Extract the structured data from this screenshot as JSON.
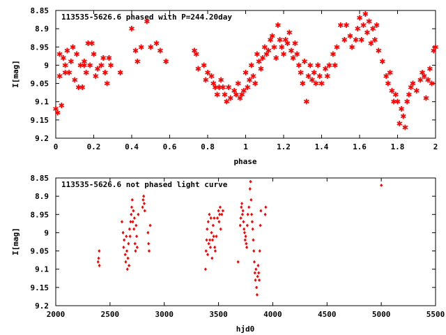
{
  "chart_data": [
    {
      "type": "scatter",
      "title": "113535-5626.6 phased with P=244.20day",
      "xlabel": "phase",
      "ylabel": "I[mag]",
      "xlim": [
        0,
        2
      ],
      "ylim": [
        9.2,
        8.85
      ],
      "y_inverted": true,
      "x_ticks": [
        "0",
        "0.2",
        "0.4",
        "0.6",
        "0.8",
        "1",
        "1.2",
        "1.4",
        "1.6",
        "1.8",
        "2"
      ],
      "y_ticks": [
        "8.85",
        "8.9",
        "8.95",
        "9",
        "9.05",
        "9.1",
        "9.15",
        "9.2"
      ],
      "grid": false,
      "marker_color": "#ff0000",
      "series": [
        {
          "points": [
            [
              0.0,
              9.12
            ],
            [
              0.01,
              9.13
            ],
            [
              0.02,
              9.03
            ],
            [
              0.02,
              8.97
            ],
            [
              0.03,
              9.11
            ],
            [
              0.04,
              8.98
            ],
            [
              0.05,
              9.0
            ],
            [
              0.05,
              9.02
            ],
            [
              0.06,
              8.96
            ],
            [
              0.07,
              9.02
            ],
            [
              0.08,
              8.99
            ],
            [
              0.09,
              8.95
            ],
            [
              0.1,
              9.04
            ],
            [
              0.11,
              8.97
            ],
            [
              0.12,
              9.06
            ],
            [
              0.13,
              9.0
            ],
            [
              0.14,
              9.06
            ],
            [
              0.15,
              9.0
            ],
            [
              0.15,
              8.99
            ],
            [
              0.16,
              9.02
            ],
            [
              0.17,
              8.94
            ],
            [
              0.18,
              9.0
            ],
            [
              0.19,
              8.94
            ],
            [
              0.2,
              8.97
            ],
            [
              0.21,
              9.03
            ],
            [
              0.22,
              9.01
            ],
            [
              0.24,
              9.0
            ],
            [
              0.25,
              8.98
            ],
            [
              0.26,
              9.02
            ],
            [
              0.27,
              9.05
            ],
            [
              0.28,
              8.98
            ],
            [
              0.29,
              9.0
            ],
            [
              0.34,
              9.02
            ],
            [
              0.4,
              8.9
            ],
            [
              0.42,
              8.96
            ],
            [
              0.43,
              8.99
            ],
            [
              0.45,
              8.95
            ],
            [
              0.48,
              8.88
            ],
            [
              0.5,
              8.95
            ],
            [
              0.53,
              8.94
            ],
            [
              0.55,
              8.96
            ],
            [
              0.58,
              8.99
            ],
            [
              0.73,
              8.96
            ],
            [
              0.74,
              8.97
            ],
            [
              0.75,
              9.01
            ],
            [
              0.78,
              9.0
            ],
            [
              0.79,
              9.04
            ],
            [
              0.8,
              9.02
            ],
            [
              0.82,
              9.03
            ],
            [
              0.83,
              9.05
            ],
            [
              0.84,
              9.06
            ],
            [
              0.85,
              9.08
            ],
            [
              0.86,
              9.06
            ],
            [
              0.87,
              9.04
            ],
            [
              0.88,
              9.06
            ],
            [
              0.89,
              9.08
            ],
            [
              0.9,
              9.1
            ],
            [
              0.91,
              9.06
            ],
            [
              0.92,
              9.09
            ],
            [
              0.94,
              9.07
            ],
            [
              0.95,
              9.08
            ],
            [
              0.96,
              9.05
            ],
            [
              0.97,
              9.09
            ],
            [
              0.98,
              9.08
            ],
            [
              0.99,
              9.07
            ],
            [
              1.0,
              9.02
            ],
            [
              1.01,
              9.06
            ],
            [
              1.02,
              9.04
            ],
            [
              1.03,
              9.0
            ],
            [
              1.04,
              9.03
            ],
            [
              1.05,
              9.05
            ],
            [
              1.06,
              8.97
            ],
            [
              1.07,
              8.99
            ],
            [
              1.08,
              9.01
            ],
            [
              1.09,
              8.98
            ],
            [
              1.1,
              8.95
            ],
            [
              1.11,
              8.97
            ],
            [
              1.12,
              8.96
            ],
            [
              1.13,
              8.93
            ],
            [
              1.14,
              8.92
            ],
            [
              1.15,
              8.95
            ],
            [
              1.16,
              8.98
            ],
            [
              1.17,
              8.89
            ],
            [
              1.18,
              8.93
            ],
            [
              1.19,
              8.95
            ],
            [
              1.2,
              8.97
            ],
            [
              1.21,
              8.93
            ],
            [
              1.22,
              8.94
            ],
            [
              1.23,
              8.91
            ],
            [
              1.24,
              8.96
            ],
            [
              1.25,
              8.98
            ],
            [
              1.26,
              8.94
            ],
            [
              1.27,
              8.97
            ],
            [
              1.28,
              9.0
            ],
            [
              1.29,
              9.02
            ],
            [
              1.3,
              9.05
            ],
            [
              1.31,
              8.99
            ],
            [
              1.32,
              9.1
            ],
            [
              1.33,
              9.03
            ],
            [
              1.34,
              9.0
            ],
            [
              1.35,
              9.04
            ],
            [
              1.36,
              9.02
            ],
            [
              1.37,
              9.05
            ],
            [
              1.38,
              9.0
            ],
            [
              1.39,
              9.03
            ],
            [
              1.4,
              9.05
            ],
            [
              1.42,
              9.01
            ],
            [
              1.43,
              9.03
            ],
            [
              1.44,
              9.0
            ],
            [
              1.46,
              8.97
            ],
            [
              1.47,
              9.0
            ],
            [
              1.48,
              8.95
            ],
            [
              1.5,
              8.89
            ],
            [
              1.52,
              8.93
            ],
            [
              1.53,
              8.89
            ],
            [
              1.55,
              8.92
            ],
            [
              1.56,
              8.95
            ],
            [
              1.58,
              8.93
            ],
            [
              1.59,
              8.9
            ],
            [
              1.6,
              8.87
            ],
            [
              1.61,
              8.93
            ],
            [
              1.62,
              8.89
            ],
            [
              1.63,
              8.86
            ],
            [
              1.64,
              8.91
            ],
            [
              1.65,
              8.88
            ],
            [
              1.66,
              8.94
            ],
            [
              1.67,
              8.9
            ],
            [
              1.68,
              8.93
            ],
            [
              1.69,
              8.89
            ],
            [
              1.7,
              8.96
            ],
            [
              1.72,
              8.99
            ],
            [
              1.74,
              9.03
            ],
            [
              1.75,
              9.05
            ],
            [
              1.76,
              9.02
            ],
            [
              1.77,
              9.07
            ],
            [
              1.78,
              9.1
            ],
            [
              1.79,
              9.08
            ],
            [
              1.8,
              9.1
            ],
            [
              1.81,
              9.16
            ],
            [
              1.82,
              9.12
            ],
            [
              1.83,
              9.14
            ],
            [
              1.84,
              9.17
            ],
            [
              1.85,
              9.1
            ],
            [
              1.86,
              9.08
            ],
            [
              1.87,
              9.06
            ],
            [
              1.88,
              9.05
            ],
            [
              1.9,
              9.07
            ],
            [
              1.92,
              9.04
            ],
            [
              1.93,
              9.02
            ],
            [
              1.94,
              9.03
            ],
            [
              1.95,
              9.09
            ],
            [
              1.96,
              9.04
            ],
            [
              1.97,
              9.01
            ],
            [
              1.98,
              9.05
            ],
            [
              1.99,
              8.96
            ],
            [
              2.0,
              8.95
            ]
          ]
        }
      ]
    },
    {
      "type": "scatter",
      "title": "113535-5626.6 not phased light curve",
      "xlabel": "hjd0",
      "ylabel": "I[mag]",
      "xlim": [
        2000,
        5500
      ],
      "ylim": [
        9.2,
        8.85
      ],
      "y_inverted": true,
      "x_ticks": [
        "2000",
        "2500",
        "3000",
        "3500",
        "4000",
        "4500",
        "5000",
        "5500"
      ],
      "y_ticks": [
        "8.85",
        "8.9",
        "8.95",
        "9",
        "9.05",
        "9.1",
        "9.15",
        "9.2"
      ],
      "grid": false,
      "marker_color": "#ff0000",
      "series": [
        {
          "points": [
            [
              2390,
              9.08
            ],
            [
              2395,
              9.07
            ],
            [
              2400,
              9.05
            ],
            [
              2402,
              9.09
            ],
            [
              2610,
              8.97
            ],
            [
              2620,
              9.0
            ],
            [
              2625,
              9.04
            ],
            [
              2630,
              9.02
            ],
            [
              2640,
              9.06
            ],
            [
              2645,
              9.08
            ],
            [
              2650,
              9.01
            ],
            [
              2655,
              9.05
            ],
            [
              2660,
              9.1
            ],
            [
              2665,
              9.07
            ],
            [
              2670,
              9.03
            ],
            [
              2675,
              9.09
            ],
            [
              2680,
              8.99
            ],
            [
              2685,
              9.01
            ],
            [
              2690,
              8.97
            ],
            [
              2695,
              8.95
            ],
            [
              2700,
              8.93
            ],
            [
              2705,
              8.91
            ],
            [
              2710,
              8.97
            ],
            [
              2715,
              8.94
            ],
            [
              2720,
              8.99
            ],
            [
              2725,
              8.96
            ],
            [
              2730,
              9.03
            ],
            [
              2735,
              9.05
            ],
            [
              2740,
              8.98
            ],
            [
              2745,
              9.01
            ],
            [
              2750,
              9.04
            ],
            [
              2760,
              8.95
            ],
            [
              2800,
              8.93
            ],
            [
              2805,
              8.91
            ],
            [
              2810,
              8.9
            ],
            [
              2815,
              8.92
            ],
            [
              2820,
              8.94
            ],
            [
              2850,
              9.0
            ],
            [
              2855,
              9.03
            ],
            [
              2860,
              9.05
            ],
            [
              2870,
              8.98
            ],
            [
              3380,
              9.1
            ],
            [
              3385,
              9.05
            ],
            [
              3390,
              9.02
            ],
            [
              3395,
              8.99
            ],
            [
              3400,
              9.06
            ],
            [
              3405,
              8.97
            ],
            [
              3410,
              9.03
            ],
            [
              3415,
              8.95
            ],
            [
              3420,
              9.02
            ],
            [
              3425,
              9.04
            ],
            [
              3430,
              8.96
            ],
            [
              3435,
              9.0
            ],
            [
              3440,
              9.07
            ],
            [
              3445,
              9.02
            ],
            [
              3450,
              8.98
            ],
            [
              3455,
              9.01
            ],
            [
              3460,
              8.96
            ],
            [
              3465,
              9.04
            ],
            [
              3470,
              9.05
            ],
            [
              3480,
              9.01
            ],
            [
              3490,
              8.96
            ],
            [
              3500,
              8.94
            ],
            [
              3505,
              8.97
            ],
            [
              3510,
              8.95
            ],
            [
              3515,
              8.93
            ],
            [
              3520,
              8.99
            ],
            [
              3530,
              8.95
            ],
            [
              3540,
              8.94
            ],
            [
              3680,
              9.08
            ],
            [
              3700,
              8.98
            ],
            [
              3705,
              8.96
            ],
            [
              3710,
              8.93
            ],
            [
              3715,
              8.92
            ],
            [
              3720,
              8.95
            ],
            [
              3725,
              8.94
            ],
            [
              3730,
              8.97
            ],
            [
              3735,
              8.99
            ],
            [
              3740,
              9.0
            ],
            [
              3745,
              9.02
            ],
            [
              3750,
              9.01
            ],
            [
              3755,
              9.03
            ],
            [
              3760,
              9.04
            ],
            [
              3765,
              8.98
            ],
            [
              3770,
              8.95
            ],
            [
              3780,
              8.93
            ],
            [
              3790,
              8.88
            ],
            [
              3795,
              8.86
            ],
            [
              3800,
              8.91
            ],
            [
              3805,
              8.95
            ],
            [
              3810,
              8.97
            ],
            [
              3815,
              8.99
            ],
            [
              3820,
              9.02
            ],
            [
              3825,
              9.05
            ],
            [
              3830,
              9.08
            ],
            [
              3835,
              9.11
            ],
            [
              3840,
              9.13
            ],
            [
              3845,
              9.1
            ],
            [
              3850,
              9.15
            ],
            [
              3855,
              9.17
            ],
            [
              3860,
              9.12
            ],
            [
              3865,
              9.09
            ],
            [
              3870,
              9.11
            ],
            [
              3875,
              9.13
            ],
            [
              3880,
              9.05
            ],
            [
              3885,
              8.98
            ],
            [
              3890,
              8.94
            ],
            [
              3930,
              8.95
            ],
            [
              3935,
              8.93
            ],
            [
              5000,
              8.87
            ]
          ]
        }
      ]
    }
  ]
}
